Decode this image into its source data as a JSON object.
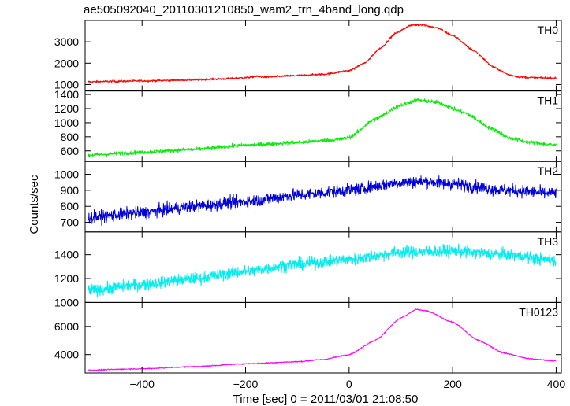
{
  "chart_data": {
    "type": "line",
    "title": "ae505092040_20110301210850_wam2_trn_4band_long.qdp",
    "xlabel": "Time [sec] 0 = 2011/03/01 21:08:50",
    "ylabel": "Counts/sec",
    "xlim": [
      -510,
      410
    ],
    "x_ticks": [
      -400,
      -200,
      0,
      200,
      400
    ],
    "x_tick_labels": [
      "−400",
      "−200",
      "0",
      "200",
      "400"
    ],
    "grid": false,
    "panels": [
      {
        "name": "TH0",
        "color": "#ff0000",
        "ylim": [
          700,
          4000
        ],
        "y_ticks": [
          1000,
          2000,
          3000
        ],
        "y_tick_labels": [
          "1000",
          "2000",
          "3000"
        ],
        "noise": 50,
        "points": [
          [
            -505,
            1130
          ],
          [
            -400,
            1170
          ],
          [
            -300,
            1220
          ],
          [
            -250,
            1260
          ],
          [
            -200,
            1320
          ],
          [
            -180,
            1380
          ],
          [
            -160,
            1350
          ],
          [
            -100,
            1420
          ],
          [
            -50,
            1480
          ],
          [
            0,
            1650
          ],
          [
            30,
            2000
          ],
          [
            60,
            2700
          ],
          [
            90,
            3400
          ],
          [
            120,
            3780
          ],
          [
            140,
            3800
          ],
          [
            170,
            3650
          ],
          [
            200,
            3300
          ],
          [
            240,
            2600
          ],
          [
            280,
            1800
          ],
          [
            310,
            1450
          ],
          [
            330,
            1350
          ],
          [
            360,
            1320
          ],
          [
            400,
            1300
          ]
        ]
      },
      {
        "name": "TH1",
        "color": "#00ee00",
        "ylim": [
          450,
          1450
        ],
        "y_ticks": [
          600,
          800,
          1000,
          1200,
          1400
        ],
        "y_tick_labels": [
          "600",
          "800",
          "1000",
          "1200",
          "1400"
        ],
        "noise": 28,
        "points": [
          [
            -505,
            540
          ],
          [
            -400,
            580
          ],
          [
            -300,
            620
          ],
          [
            -200,
            680
          ],
          [
            -100,
            720
          ],
          [
            -20,
            760
          ],
          [
            0,
            790
          ],
          [
            50,
            1050
          ],
          [
            100,
            1250
          ],
          [
            130,
            1320
          ],
          [
            170,
            1290
          ],
          [
            220,
            1150
          ],
          [
            280,
            900
          ],
          [
            310,
            780
          ],
          [
            350,
            720
          ],
          [
            400,
            680
          ]
        ]
      },
      {
        "name": "TH2",
        "color": "#0000dd",
        "ylim": [
          640,
          1080
        ],
        "y_ticks": [
          700,
          800,
          900,
          1000
        ],
        "y_tick_labels": [
          "700",
          "800",
          "900",
          "1000"
        ],
        "noise": 38,
        "points": [
          [
            -505,
            730
          ],
          [
            -400,
            760
          ],
          [
            -300,
            800
          ],
          [
            -200,
            830
          ],
          [
            -100,
            870
          ],
          [
            0,
            900
          ],
          [
            100,
            950
          ],
          [
            150,
            955
          ],
          [
            200,
            940
          ],
          [
            300,
            900
          ],
          [
            400,
            880
          ]
        ]
      },
      {
        "name": "TH3",
        "color": "#00eeee",
        "ylim": [
          1000,
          1590
        ],
        "y_ticks": [
          1000,
          1200,
          1400
        ],
        "y_tick_labels": [
          "1000",
          "1200",
          "1400"
        ],
        "noise": 50,
        "points": [
          [
            -505,
            1100
          ],
          [
            -400,
            1150
          ],
          [
            -300,
            1200
          ],
          [
            -200,
            1260
          ],
          [
            -100,
            1320
          ],
          [
            0,
            1360
          ],
          [
            100,
            1420
          ],
          [
            200,
            1430
          ],
          [
            300,
            1400
          ],
          [
            400,
            1350
          ]
        ]
      },
      {
        "name": "TH0123",
        "color": "#ff00ff",
        "ylim": [
          2700,
          7700
        ],
        "y_ticks": [
          4000,
          6000
        ],
        "y_tick_labels": [
          "4000",
          "6000"
        ],
        "noise": 45,
        "points": [
          [
            -505,
            2900
          ],
          [
            -400,
            3000
          ],
          [
            -300,
            3150
          ],
          [
            -200,
            3350
          ],
          [
            -100,
            3500
          ],
          [
            -50,
            3650
          ],
          [
            0,
            4000
          ],
          [
            50,
            5000
          ],
          [
            100,
            6600
          ],
          [
            130,
            7200
          ],
          [
            150,
            7100
          ],
          [
            200,
            6300
          ],
          [
            250,
            5000
          ],
          [
            300,
            4100
          ],
          [
            350,
            3700
          ],
          [
            400,
            3550
          ]
        ]
      }
    ]
  }
}
